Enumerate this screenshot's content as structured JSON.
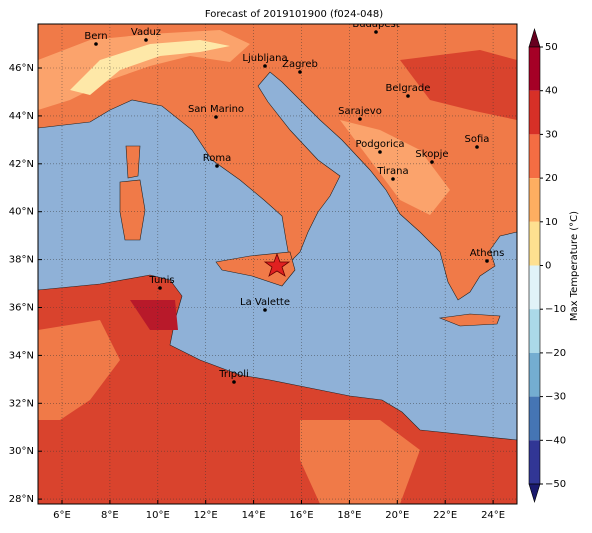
{
  "title": "Forecast of 2019101900 (f024-048)",
  "map": {
    "cities": [
      {
        "label": "Bern"
      },
      {
        "label": "Vaduz"
      },
      {
        "label": "Budapest"
      },
      {
        "label": "Ljubljana"
      },
      {
        "label": "Zagreb"
      },
      {
        "label": "San Marino"
      },
      {
        "label": "Belgrade"
      },
      {
        "label": "Sarajevo"
      },
      {
        "label": "Sofia"
      },
      {
        "label": "Podgorica"
      },
      {
        "label": "Skopje"
      },
      {
        "label": "Roma"
      },
      {
        "label": "Tirana"
      },
      {
        "label": "Athens"
      },
      {
        "label": "Tunis"
      },
      {
        "label": "La Valette"
      },
      {
        "label": "Tripoli"
      }
    ],
    "xticks": [
      "6°E",
      "8°E",
      "10°E",
      "12°E",
      "14°E",
      "16°E",
      "18°E",
      "20°E",
      "22°E",
      "24°E"
    ],
    "yticks": [
      "46°N",
      "44°N",
      "42°N",
      "40°N",
      "38°N",
      "36°N",
      "34°N",
      "32°N",
      "30°N",
      "28°N"
    ]
  },
  "colorbar": {
    "label": "Max Temperature (°C)",
    "ticks": [
      "50",
      "40",
      "30",
      "20",
      "10",
      "0",
      "−10",
      "−20",
      "−30",
      "−40",
      "−50"
    ]
  }
}
